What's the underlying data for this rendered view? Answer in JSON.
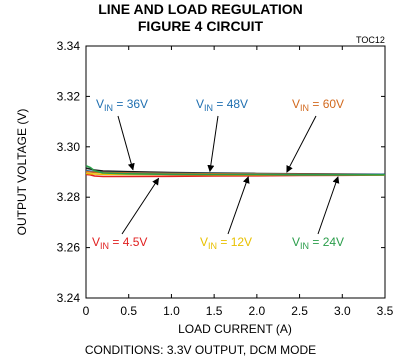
{
  "chart_data": {
    "type": "line",
    "title": "LINE AND LOAD REGULATION",
    "subtitle": "FIGURE 4 CIRCUIT",
    "tag": "TOC12",
    "xlabel": "LOAD CURRENT (A)",
    "ylabel": "OUTPUT VOLTAGE (V)",
    "xlim": [
      0,
      3.5
    ],
    "ylim": [
      3.24,
      3.34
    ],
    "xticks": [
      0,
      0.5,
      1.0,
      1.5,
      2.0,
      2.5,
      3.0,
      3.5
    ],
    "xtick_labels": [
      "0",
      "0.5",
      "1.0",
      "1.5",
      "2.0",
      "2.5",
      "3.0",
      "3.5"
    ],
    "yticks": [
      3.24,
      3.26,
      3.28,
      3.3,
      3.32,
      3.34
    ],
    "ytick_labels": [
      "3.24",
      "3.26",
      "3.28",
      "3.30",
      "3.32",
      "3.34"
    ],
    "grid": false,
    "footnote": "CONDITIONS: 3.3V OUTPUT, DCM MODE",
    "series": [
      {
        "name": "36V",
        "color": "#1a1a1a",
        "x": [
          0,
          0.05,
          0.1,
          0.2,
          0.5,
          1.0,
          1.5,
          2.0,
          2.5,
          3.0,
          3.5
        ],
        "y": [
          3.2915,
          3.2912,
          3.2908,
          3.2904,
          3.2901,
          3.2898,
          3.2896,
          3.2894,
          3.2893,
          3.2892,
          3.2891
        ]
      },
      {
        "name": "48V",
        "color": "#1f6fb0",
        "x": [
          0,
          0.05,
          0.1,
          0.2,
          0.5,
          1.0,
          1.5,
          2.0,
          2.5,
          3.0,
          3.5
        ],
        "y": [
          3.2905,
          3.2903,
          3.2901,
          3.2899,
          3.2897,
          3.2895,
          3.2894,
          3.2893,
          3.2892,
          3.2891,
          3.289
        ]
      },
      {
        "name": "60V",
        "color": "#d2691e",
        "x": [
          0,
          0.05,
          0.1,
          0.2,
          0.5,
          1.0,
          1.5,
          2.0,
          2.5,
          3.0,
          3.5
        ],
        "y": [
          3.2902,
          3.29,
          3.2899,
          3.2898,
          3.2896,
          3.2894,
          3.2893,
          3.2892,
          3.2891,
          3.289,
          3.2889
        ]
      },
      {
        "name": "4.5V",
        "color": "#e02020",
        "x": [
          0,
          0.05,
          0.1,
          0.2,
          0.5,
          1.0,
          1.5,
          2.0,
          2.5,
          3.0,
          3.5
        ],
        "y": [
          3.289,
          3.2889,
          3.2884,
          3.2882,
          3.2882,
          3.2883,
          3.2884,
          3.2885,
          3.2886,
          3.2887,
          3.2888
        ]
      },
      {
        "name": "12V",
        "color": "#e8c000",
        "x": [
          0,
          0.05,
          0.1,
          0.2,
          0.5,
          1.0,
          1.5,
          2.0,
          2.5,
          3.0,
          3.5
        ],
        "y": [
          3.2895,
          3.2893,
          3.2892,
          3.2891,
          3.289,
          3.289,
          3.2889,
          3.2889,
          3.2889,
          3.2889,
          3.2888
        ]
      },
      {
        "name": "24V",
        "color": "#2a9d4a",
        "x": [
          0,
          0.05,
          0.1,
          0.2,
          0.5,
          1.0,
          1.5,
          2.0,
          2.5,
          3.0,
          3.5
        ],
        "y": [
          3.2925,
          3.2918,
          3.2905,
          3.2896,
          3.2893,
          3.2891,
          3.289,
          3.289,
          3.2889,
          3.2889,
          3.2889
        ]
      }
    ],
    "annotations": [
      {
        "prefix": "V",
        "sub": "IN",
        "text": " = 36V",
        "color": "#1f6fb0",
        "series": "36V"
      },
      {
        "prefix": "V",
        "sub": "IN",
        "text": " = 48V",
        "color": "#1f6fb0",
        "series": "48V"
      },
      {
        "prefix": "V",
        "sub": "IN",
        "text": " = 60V",
        "color": "#d2691e",
        "series": "60V"
      },
      {
        "prefix": "V",
        "sub": "IN",
        "text": " = 4.5V",
        "color": "#e02020",
        "series": "4.5V"
      },
      {
        "prefix": "V",
        "sub": "IN",
        "text": " = 12V",
        "color": "#e8c000",
        "series": "12V"
      },
      {
        "prefix": "V",
        "sub": "IN",
        "text": " = 24V",
        "color": "#2a9d4a",
        "series": "24V"
      }
    ]
  }
}
